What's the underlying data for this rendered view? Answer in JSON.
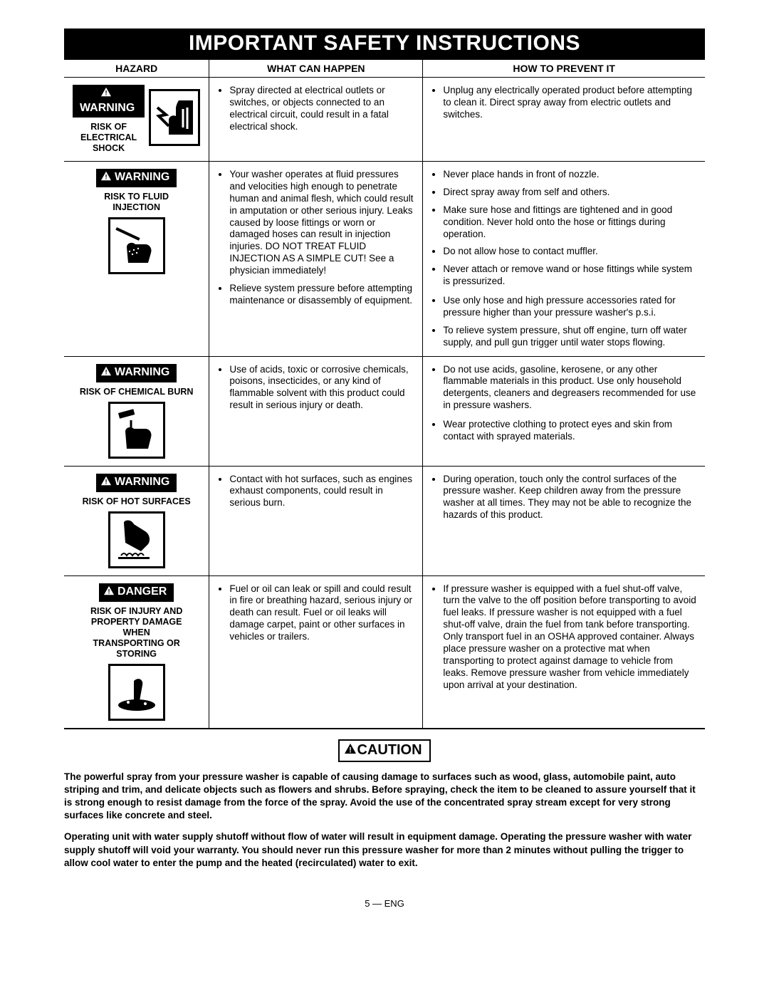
{
  "title": "IMPORTANT SAFETY INSTRUCTIONS",
  "columns": {
    "hazard": "HAZARD",
    "happen": "WHAT CAN HAPPEN",
    "prevent": "HOW TO PREVENT IT"
  },
  "badges": {
    "warning": "WARNING",
    "danger": "DANGER",
    "caution": "CAUTION"
  },
  "rows": [
    {
      "hazard_title": "RISK OF\nELECTRICAL\nSHOCK",
      "happen": [
        "Spray directed at electrical outlets or switches, or objects connected to an electrical circuit, could result in a fatal electrical shock."
      ],
      "prevent": [
        "Unplug any electrically operated product before attempting to clean it. Direct spray away from electric outlets and switches."
      ]
    },
    {
      "hazard_title": "RISK TO FLUID\nINJECTION",
      "happen": [
        "Your washer operates at fluid pressures and velocities high enough to penetrate human and animal flesh, which could result in amputation or other serious injury.  Leaks caused by loose fittings or worn or damaged hoses can result in injection injuries. DO NOT TREAT FLUID INJECTION AS A SIMPLE CUT!  See a physician immediately!",
        "Relieve system pressure before attempting maintenance or disassembly of equipment."
      ],
      "prevent": [
        "Never place hands in front of nozzle.",
        "Direct spray away from self and others.",
        "Make sure hose and fittings are tightened and in good condition.  Never hold onto the hose or fittings during operation.",
        "Do not allow hose to contact muffler.",
        "Never attach or remove wand or hose fittings while system is pressurized.",
        "Use only hose and high pressure accessories rated for pressure higher than your pressure washer's p.s.i.",
        "To relieve system pressure, shut off  engine, turn off water supply, and pull gun trigger until water stops flowing."
      ],
      "prevent_break_after": 4
    },
    {
      "hazard_title": "RISK OF CHEMICAL BURN",
      "happen": [
        "Use of acids, toxic or corrosive chemicals, poisons, insecticides, or any kind of flammable solvent with this product could result in serious injury or death."
      ],
      "prevent": [
        "Do not use acids, gasoline, kerosene, or any other flammable materials in this product.  Use only household detergents, cleaners and degreasers recommended for use in pressure washers.",
        "Wear protective clothing to protect eyes and skin from contact with sprayed materials."
      ],
      "prevent_break_after": 0
    },
    {
      "hazard_title": "RISK OF HOT SURFACES",
      "happen": [
        "Contact with hot surfaces, such as engines exhaust components, could result in serious burn."
      ],
      "prevent": [
        "During operation, touch only the control surfaces of the pressure washer.  Keep children away from the pressure washer at all times. They may not be able to recognize the hazards of this product."
      ]
    },
    {
      "badge": "danger",
      "hazard_title": "RISK OF INJURY AND\nPROPERTY DAMAGE\nWHEN\nTRANSPORTING OR\nSTORING",
      "happen": [
        "Fuel or oil can leak or spill and could result in fire or breathing hazard, serious injury or death can result. Fuel or oil leaks will damage carpet, paint or other surfaces in vehicles or trailers."
      ],
      "prevent": [
        "If pressure washer is equipped with a fuel shut-off valve, turn the valve to the off position before transporting to avoid fuel leaks. If pressure washer is not equipped with a fuel shut-off valve, drain the fuel from tank before transporting. Only transport fuel in an OSHA approved container. Always place pressure washer on a protective mat when transporting to protect against damage to vehicle from leaks. Remove pressure washer from vehicle immediately upon arrival at your destination."
      ]
    }
  ],
  "caution_paras": [
    "The powerful spray from your pressure washer is capable of causing damage to surfaces such as wood, glass, automobile paint, auto striping and trim, and delicate objects such as flowers and shrubs. Before spraying, check the item to be cleaned to assure yourself that it is strong enough to resist damage from the force of the spray. Avoid the use of the concentrated spray stream except for very strong surfaces like concrete and steel.",
    "Operating unit with water supply shutoff without flow of water will result in equipment damage. Operating the pressure washer with water supply shutoff will void your warranty. You should never run this pressure washer for more than 2 minutes without pulling the trigger to allow cool water to enter the pump and the heated (recirculated) water to exit."
  ],
  "footer": "5 — ENG",
  "colors": {
    "black": "#000000",
    "white": "#ffffff"
  }
}
